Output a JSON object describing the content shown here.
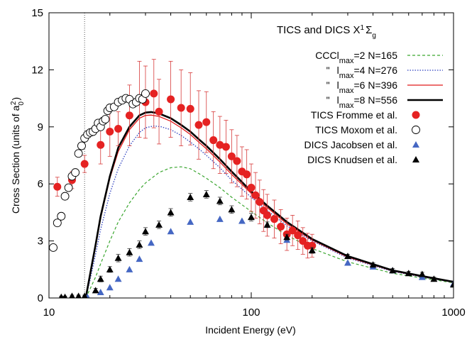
{
  "chart_data": {
    "type": "scatter",
    "title": "",
    "xlabel": "Incident Energy (eV)",
    "ylabel_main": "Cross Section (units of a",
    "ylabel_sub": "0",
    "ylabel_sup": "2",
    "ylabel_end": ")",
    "xscale": "log",
    "xlim": [
      10,
      1000
    ],
    "ylim": [
      0,
      15
    ],
    "xticks": [
      10,
      100,
      1000
    ],
    "xtick_labels": [
      "10",
      "100",
      "1000"
    ],
    "yticks": [
      0,
      3,
      6,
      9,
      12,
      15
    ],
    "ytick_labels": [
      "0",
      "3",
      "6",
      "9",
      "12",
      "15"
    ],
    "threshold_x": 15.0,
    "legend_position": "top-right",
    "legend_title": {
      "prefix": "TICS and DICS X",
      "sup1": "1",
      "sigma": "Σ",
      "sub": "g"
    },
    "series": [
      {
        "name": "CCC l max=2 N=165",
        "legend_parts": [
          "CCC",
          "l",
          "max",
          "=2 N=165"
        ],
        "kind": "line",
        "color": "#3aa62f",
        "dash": "4,3",
        "width": 1.2,
        "x": [
          15.2,
          16,
          17,
          18,
          20,
          22,
          25,
          28,
          30,
          35,
          40,
          45,
          50,
          55,
          60,
          70,
          80,
          100,
          120,
          150,
          200,
          300,
          500,
          700,
          1000
        ],
        "y": [
          0.0,
          0.5,
          1.1,
          1.8,
          3.0,
          4.0,
          5.0,
          5.7,
          6.05,
          6.6,
          6.85,
          6.9,
          6.8,
          6.55,
          6.3,
          5.8,
          5.3,
          4.55,
          3.95,
          3.3,
          2.6,
          1.9,
          1.3,
          1.05,
          0.8
        ]
      },
      {
        "name": "\" l max=4 N=276",
        "legend_parts": [
          "\"",
          "l",
          "max",
          "=4 N=276"
        ],
        "kind": "line",
        "color": "#2c3fbf",
        "dash": "1.5,2",
        "width": 1.3,
        "x": [
          15.2,
          16,
          17,
          18,
          20,
          22,
          25,
          28,
          30,
          33,
          36,
          40,
          45,
          50,
          55,
          60,
          70,
          80,
          100,
          120,
          150,
          200,
          300,
          500,
          700,
          1000
        ],
        "y": [
          0.0,
          1.0,
          2.3,
          3.6,
          5.5,
          6.8,
          8.0,
          8.7,
          8.95,
          9.05,
          9.0,
          8.85,
          8.55,
          8.2,
          7.85,
          7.5,
          6.85,
          6.2,
          5.3,
          4.6,
          3.8,
          3.0,
          2.1,
          1.4,
          1.1,
          0.82
        ]
      },
      {
        "name": "\" l max=6 N=396",
        "legend_parts": [
          "\"",
          "l",
          "max",
          "=6 N=396"
        ],
        "kind": "line",
        "color": "#e11b1b",
        "dash": "",
        "width": 1.3,
        "x": [
          15.2,
          16,
          17,
          18,
          20,
          22,
          25,
          28,
          30,
          32,
          35,
          40,
          45,
          50,
          55,
          60,
          70,
          80,
          100,
          120,
          150,
          200,
          300,
          500,
          700,
          1000
        ],
        "y": [
          0.0,
          1.2,
          2.7,
          4.2,
          6.3,
          7.7,
          8.85,
          9.45,
          9.6,
          9.62,
          9.55,
          9.3,
          8.95,
          8.6,
          8.2,
          7.85,
          7.15,
          6.5,
          5.5,
          4.75,
          3.9,
          3.05,
          2.15,
          1.42,
          1.12,
          0.83
        ]
      },
      {
        "name": "\" l max=8 N=556",
        "legend_parts": [
          "\"",
          "l",
          "max",
          "=8 N=556"
        ],
        "kind": "line",
        "color": "#000000",
        "dash": "",
        "width": 2.6,
        "x": [
          15.2,
          16,
          17,
          18,
          20,
          22,
          25,
          28,
          30,
          32,
          35,
          40,
          45,
          50,
          55,
          60,
          70,
          80,
          100,
          120,
          150,
          200,
          300,
          500,
          700,
          1000
        ],
        "y": [
          0.0,
          1.3,
          2.8,
          4.3,
          6.4,
          7.9,
          9.0,
          9.6,
          9.75,
          9.78,
          9.7,
          9.45,
          9.1,
          8.75,
          8.35,
          8.0,
          7.3,
          6.65,
          5.6,
          4.85,
          4.0,
          3.1,
          2.2,
          1.45,
          1.15,
          0.85
        ]
      },
      {
        "name": "TICS Fromme et al.",
        "kind": "points",
        "marker": "circle-filled",
        "color": "#e52222",
        "errcolor": "#d73a3a",
        "x": [
          11,
          13,
          15,
          18,
          20,
          22,
          25,
          28,
          30,
          33,
          35,
          40,
          45,
          50,
          55,
          60,
          65,
          70,
          75,
          80,
          85,
          90,
          95,
          100,
          105,
          110,
          115,
          120,
          130,
          140,
          150,
          160,
          170,
          180,
          190,
          200
        ],
        "y": [
          5.85,
          6.2,
          7.05,
          8.05,
          8.75,
          8.9,
          9.6,
          10.45,
          10.3,
          10.75,
          9.8,
          10.45,
          10.0,
          9.95,
          9.1,
          9.25,
          8.3,
          8.05,
          7.95,
          7.45,
          7.2,
          6.65,
          6.5,
          5.8,
          5.4,
          5.05,
          4.6,
          4.35,
          4.15,
          3.75,
          3.35,
          3.55,
          3.3,
          3.0,
          2.75,
          2.75
        ],
        "err": [
          0.5,
          0.45,
          0.45,
          1.0,
          1.3,
          0.9,
          1.6,
          2.0,
          1.9,
          1.8,
          1.7,
          2.0,
          2.0,
          1.9,
          1.8,
          1.6,
          1.5,
          1.5,
          1.4,
          1.4,
          1.35,
          1.3,
          1.3,
          1.25,
          1.2,
          1.15,
          1.1,
          1.1,
          1.0,
          0.9,
          0.85,
          0.8,
          0.75,
          0.7,
          0.65,
          0.6
        ]
      },
      {
        "name": "TICS  Moxom et al.",
        "kind": "points",
        "marker": "circle-open",
        "color": "#000000",
        "x": [
          10.5,
          11.0,
          11.5,
          12.0,
          12.5,
          13.0,
          13.5,
          14.0,
          14.5,
          15.0,
          15.5,
          16.0,
          16.5,
          17.0,
          17.5,
          18.0,
          18.5,
          19.0,
          19.5,
          20.0,
          21.0,
          22.0,
          23.0,
          24.0,
          25.0,
          26.0,
          27.0,
          28.0,
          29.0,
          30.0
        ],
        "y": [
          2.65,
          3.95,
          4.3,
          5.35,
          5.8,
          6.4,
          6.6,
          7.6,
          8.0,
          8.4,
          8.6,
          8.7,
          8.75,
          8.9,
          9.2,
          9.0,
          9.3,
          9.4,
          9.85,
          10.0,
          10.05,
          10.3,
          10.4,
          10.5,
          10.45,
          10.2,
          10.3,
          10.5,
          10.45,
          10.75
        ]
      },
      {
        "name": "DICS Jacobsen et al.",
        "kind": "points",
        "marker": "triangle",
        "color": "#4567c3",
        "x": [
          15.5,
          18,
          20,
          22,
          25,
          28,
          32,
          40,
          50,
          70,
          90,
          150,
          200,
          300,
          400,
          500,
          700,
          1000
        ],
        "y": [
          0.05,
          0.3,
          0.55,
          1.0,
          1.5,
          2.05,
          2.9,
          3.5,
          4.0,
          4.15,
          4.05,
          3.05,
          2.5,
          1.85,
          1.65,
          1.45,
          1.1,
          0.75
        ]
      },
      {
        "name": "DICS Knudsen  et al.",
        "kind": "points",
        "marker": "triangle",
        "color": "#000000",
        "errcolor": "#333333",
        "x": [
          11.5,
          12,
          13,
          14,
          15,
          17,
          18,
          20,
          22,
          25,
          28,
          30,
          35,
          40,
          50,
          60,
          70,
          80,
          100,
          120,
          150,
          200,
          300,
          400,
          500,
          600,
          700,
          800,
          1000
        ],
        "y": [
          0.05,
          0.05,
          0.1,
          0.1,
          0.1,
          0.4,
          1.0,
          1.5,
          2.1,
          2.4,
          2.8,
          3.5,
          3.85,
          4.5,
          5.3,
          5.45,
          5.1,
          4.65,
          4.25,
          3.85,
          3.2,
          2.5,
          2.2,
          1.75,
          1.45,
          1.3,
          1.25,
          1.0,
          0.7
        ],
        "err": [
          0.05,
          0.05,
          0.05,
          0.05,
          0.05,
          0.1,
          0.15,
          0.15,
          0.2,
          0.2,
          0.2,
          0.2,
          0.2,
          0.2,
          0.2,
          0.2,
          0.2,
          0.2,
          0.2,
          0.15,
          0.15,
          0.15,
          0.1,
          0.1,
          0.1,
          0.1,
          0.1,
          0.1,
          0.1
        ]
      }
    ]
  }
}
